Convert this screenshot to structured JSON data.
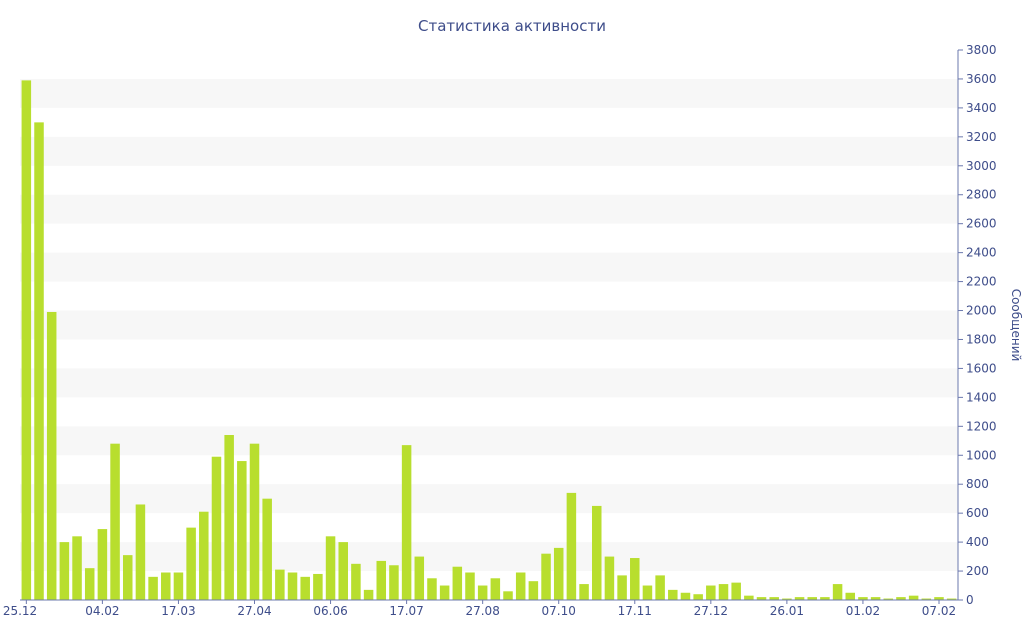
{
  "chart_data": {
    "type": "bar",
    "title": "Статистика активности",
    "xlabel": "",
    "ylabel": "Сообщений",
    "y_axis_side": "right",
    "ylim": [
      0,
      3800
    ],
    "y_ticks": [
      0,
      200,
      400,
      600,
      800,
      1000,
      1200,
      1400,
      1600,
      1800,
      2000,
      2200,
      2400,
      2600,
      2800,
      3000,
      3200,
      3400,
      3600,
      3800
    ],
    "x_tick_labels": [
      {
        "index": 0,
        "label": "25.12"
      },
      {
        "index": 6,
        "label": "04.02"
      },
      {
        "index": 12,
        "label": "17.03"
      },
      {
        "index": 18,
        "label": "27.04"
      },
      {
        "index": 24,
        "label": "06.06"
      },
      {
        "index": 30,
        "label": "17.07"
      },
      {
        "index": 36,
        "label": "27.08"
      },
      {
        "index": 42,
        "label": "07.10"
      },
      {
        "index": 48,
        "label": "17.11"
      },
      {
        "index": 54,
        "label": "27.12"
      },
      {
        "index": 60,
        "label": "26.01"
      },
      {
        "index": 66,
        "label": "01.02"
      },
      {
        "index": 72,
        "label": "07.02"
      }
    ],
    "values": [
      3590,
      3300,
      1990,
      400,
      440,
      220,
      490,
      1080,
      310,
      660,
      160,
      190,
      190,
      500,
      610,
      990,
      1140,
      960,
      1080,
      700,
      210,
      190,
      160,
      180,
      440,
      400,
      250,
      70,
      270,
      240,
      1070,
      300,
      150,
      100,
      230,
      190,
      100,
      150,
      60,
      190,
      130,
      320,
      360,
      740,
      110,
      650,
      300,
      170,
      290,
      100,
      170,
      70,
      50,
      40,
      100,
      110,
      120,
      30,
      20,
      20,
      10,
      20,
      20,
      20,
      110,
      50,
      20,
      20,
      10,
      20,
      30,
      10,
      20,
      10
    ],
    "colors": {
      "bar": "#b8de2e",
      "text": "#3e4d8a",
      "axis": "#6b78ad",
      "band": "#f7f7f7"
    },
    "grid": "alternating-bands"
  }
}
